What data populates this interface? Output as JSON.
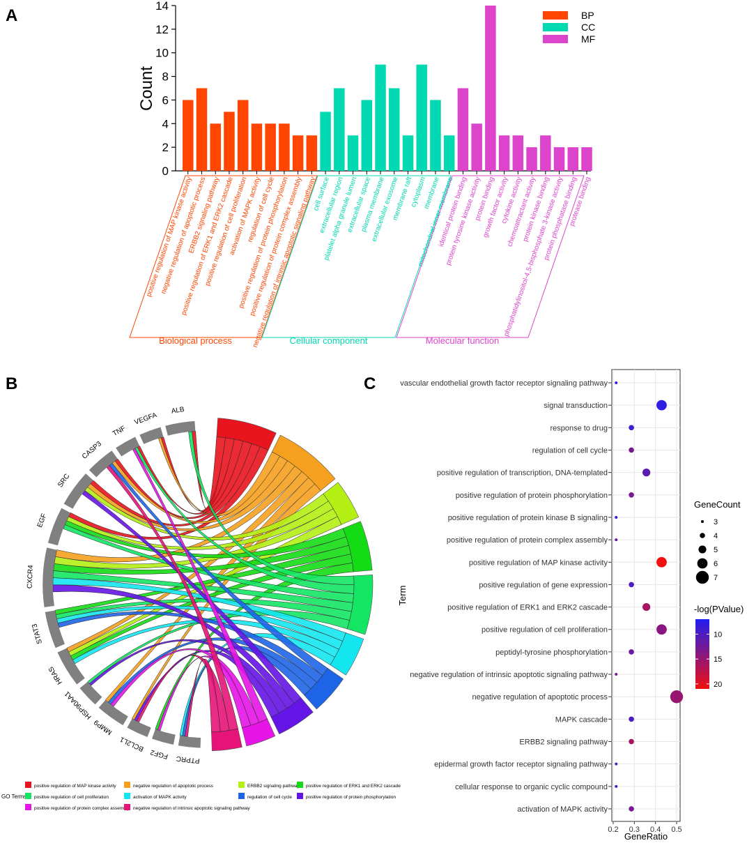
{
  "panels": {
    "a": "A",
    "b": "B",
    "c": "C"
  },
  "chart_data": [
    {
      "type": "bar",
      "ylabel": "Count",
      "ylim": [
        0,
        14
      ],
      "yticks": [
        0,
        2,
        4,
        6,
        8,
        10,
        12,
        14
      ],
      "legend": [
        {
          "name": "BP",
          "color": "#FF4500"
        },
        {
          "name": "CC",
          "color": "#00D9B2"
        },
        {
          "name": "MF",
          "color": "#DD44CC"
        }
      ],
      "groups": [
        {
          "name": "BP",
          "label": "Biological process",
          "color": "#FF4500",
          "categories": [
            "positive regulation of MAP kinase activity",
            "negative regulation of apoptotic process",
            "ERBB2 signaling pathway",
            "positive regulation of ERK1 and ERK2 cascade",
            "positive regulation of cell proliferation",
            "activation of MAPK activity",
            "regulation of cell cycle",
            "positive regulation of protein phosphorylation",
            "positive regulation of protein complex assembly",
            "negative regulation of intrinsic apoptotic signaling pathway"
          ],
          "values": [
            6,
            7,
            4,
            5,
            6,
            4,
            4,
            4,
            3,
            3
          ]
        },
        {
          "name": "CC",
          "label": "Cellular component",
          "color": "#00D9B2",
          "categories": [
            "cell surface",
            "extracellular region",
            "platelet alpha granule lumen",
            "extracellular space",
            "plasma membrane",
            "extracellular exosome",
            "membrane raft",
            "cytoplasm",
            "membrane",
            "mitochondrial inner membrane"
          ],
          "values": [
            5,
            7,
            3,
            6,
            9,
            7,
            3,
            9,
            6,
            3
          ]
        },
        {
          "name": "MF",
          "label": "Molecular function",
          "color": "#DD44CC",
          "categories": [
            "identical protein binding",
            "protein tyrosine kinase activity",
            "protein binding",
            "growth factor activity",
            "cytokine activity",
            "chemoattractant activity",
            "protein kinase binding",
            "phosphatidylinositol-4,5-bisphosphate 3-kinase activity",
            "protein phosphatase binding",
            "protease binding"
          ],
          "values": [
            7,
            4,
            14,
            3,
            3,
            2,
            3,
            2,
            2,
            2
          ]
        }
      ]
    },
    {
      "type": "chord",
      "genes": [
        "ALB",
        "VEGFA",
        "TNF",
        "CASP3",
        "SRC",
        "EGF",
        "CXCR4",
        "STAT3",
        "HRAS",
        "HSP90AA1",
        "MMP9",
        "BCL2L1",
        "FGF2",
        "PTPRC"
      ],
      "gene_weights": [
        4,
        3,
        3,
        4,
        5,
        5,
        8,
        5,
        5,
        3,
        4,
        3,
        3,
        3
      ],
      "terms": [
        {
          "name": "positive regulation of MAP kinase activity",
          "color": "#E8141E",
          "weight": 6
        },
        {
          "name": "negative regulation of apoptotic process",
          "color": "#F5A01E",
          "weight": 7
        },
        {
          "name": "ERBB2 signaling pathway",
          "color": "#B4F014",
          "weight": 4
        },
        {
          "name": "positive regulation of ERK1 and ERK2 cascade",
          "color": "#14DC14",
          "weight": 5
        },
        {
          "name": "positive regulation of cell proliferation",
          "color": "#14E664",
          "weight": 6
        },
        {
          "name": "activation of MAPK activity",
          "color": "#14E6F0",
          "weight": 4
        },
        {
          "name": "regulation of cell cycle",
          "color": "#1E64E6",
          "weight": 4
        },
        {
          "name": "positive regulation of protein phosphorylation",
          "color": "#6414E6",
          "weight": 4
        },
        {
          "name": "positive regulation of protein complex assembly",
          "color": "#E614E6",
          "weight": 3
        },
        {
          "name": "negative regulation of intrinsic apoptotic signaling pathway",
          "color": "#E61478",
          "weight": 3
        }
      ],
      "legend_title": "GO Terms"
    },
    {
      "type": "scatter",
      "xlabel": "GeneRatio",
      "ylabel": "Term",
      "xlim": [
        0.2,
        0.5
      ],
      "xticks": [
        0.2,
        0.3,
        0.4,
        0.5
      ],
      "size_legend": {
        "title": "GeneCount",
        "values": [
          3,
          4,
          5,
          6,
          7
        ]
      },
      "color_legend": {
        "title": "-log(PValue)",
        "ticks": [
          10,
          15,
          20
        ],
        "range": [
          7,
          21
        ],
        "low_color": "#2020F0",
        "high_color": "#F01010"
      },
      "points": [
        {
          "term": "vascular endothelial growth factor receptor signaling pathway",
          "ratio": 0.214,
          "count": 3,
          "logp": 8
        },
        {
          "term": "signal transduction",
          "ratio": 0.429,
          "count": 6,
          "logp": 8
        },
        {
          "term": "response to drug",
          "ratio": 0.286,
          "count": 4,
          "logp": 9
        },
        {
          "term": "regulation of cell cycle",
          "ratio": 0.286,
          "count": 4,
          "logp": 13
        },
        {
          "term": "positive regulation of transcription, DNA-templated",
          "ratio": 0.357,
          "count": 5,
          "logp": 11
        },
        {
          "term": "positive regulation of protein phosphorylation",
          "ratio": 0.286,
          "count": 4,
          "logp": 13
        },
        {
          "term": "positive regulation of protein kinase B signaling",
          "ratio": 0.214,
          "count": 3,
          "logp": 9
        },
        {
          "term": "positive regulation of protein complex assembly",
          "ratio": 0.214,
          "count": 3,
          "logp": 12
        },
        {
          "term": "positive regulation of MAP kinase activity",
          "ratio": 0.429,
          "count": 6,
          "logp": 21
        },
        {
          "term": "positive regulation of gene expression",
          "ratio": 0.286,
          "count": 4,
          "logp": 10
        },
        {
          "term": "positive regulation of ERK1 and ERK2 cascade",
          "ratio": 0.357,
          "count": 5,
          "logp": 16
        },
        {
          "term": "positive regulation of cell proliferation",
          "ratio": 0.429,
          "count": 6,
          "logp": 14
        },
        {
          "term": "peptidyl-tyrosine phosphorylation",
          "ratio": 0.286,
          "count": 4,
          "logp": 12
        },
        {
          "term": "negative regulation of intrinsic apoptotic signaling pathway",
          "ratio": 0.214,
          "count": 3,
          "logp": 13
        },
        {
          "term": "negative regulation of apoptotic process",
          "ratio": 0.5,
          "count": 7,
          "logp": 15
        },
        {
          "term": "MAPK cascade",
          "ratio": 0.286,
          "count": 4,
          "logp": 10
        },
        {
          "term": "ERBB2 signaling pathway",
          "ratio": 0.286,
          "count": 4,
          "logp": 16
        },
        {
          "term": "epidermal growth factor receptor signaling pathway",
          "ratio": 0.214,
          "count": 3,
          "logp": 10
        },
        {
          "term": "cellular response to organic cyclic compound",
          "ratio": 0.214,
          "count": 3,
          "logp": 9
        },
        {
          "term": "activation of MAPK activity",
          "ratio": 0.286,
          "count": 4,
          "logp": 13
        }
      ]
    }
  ]
}
